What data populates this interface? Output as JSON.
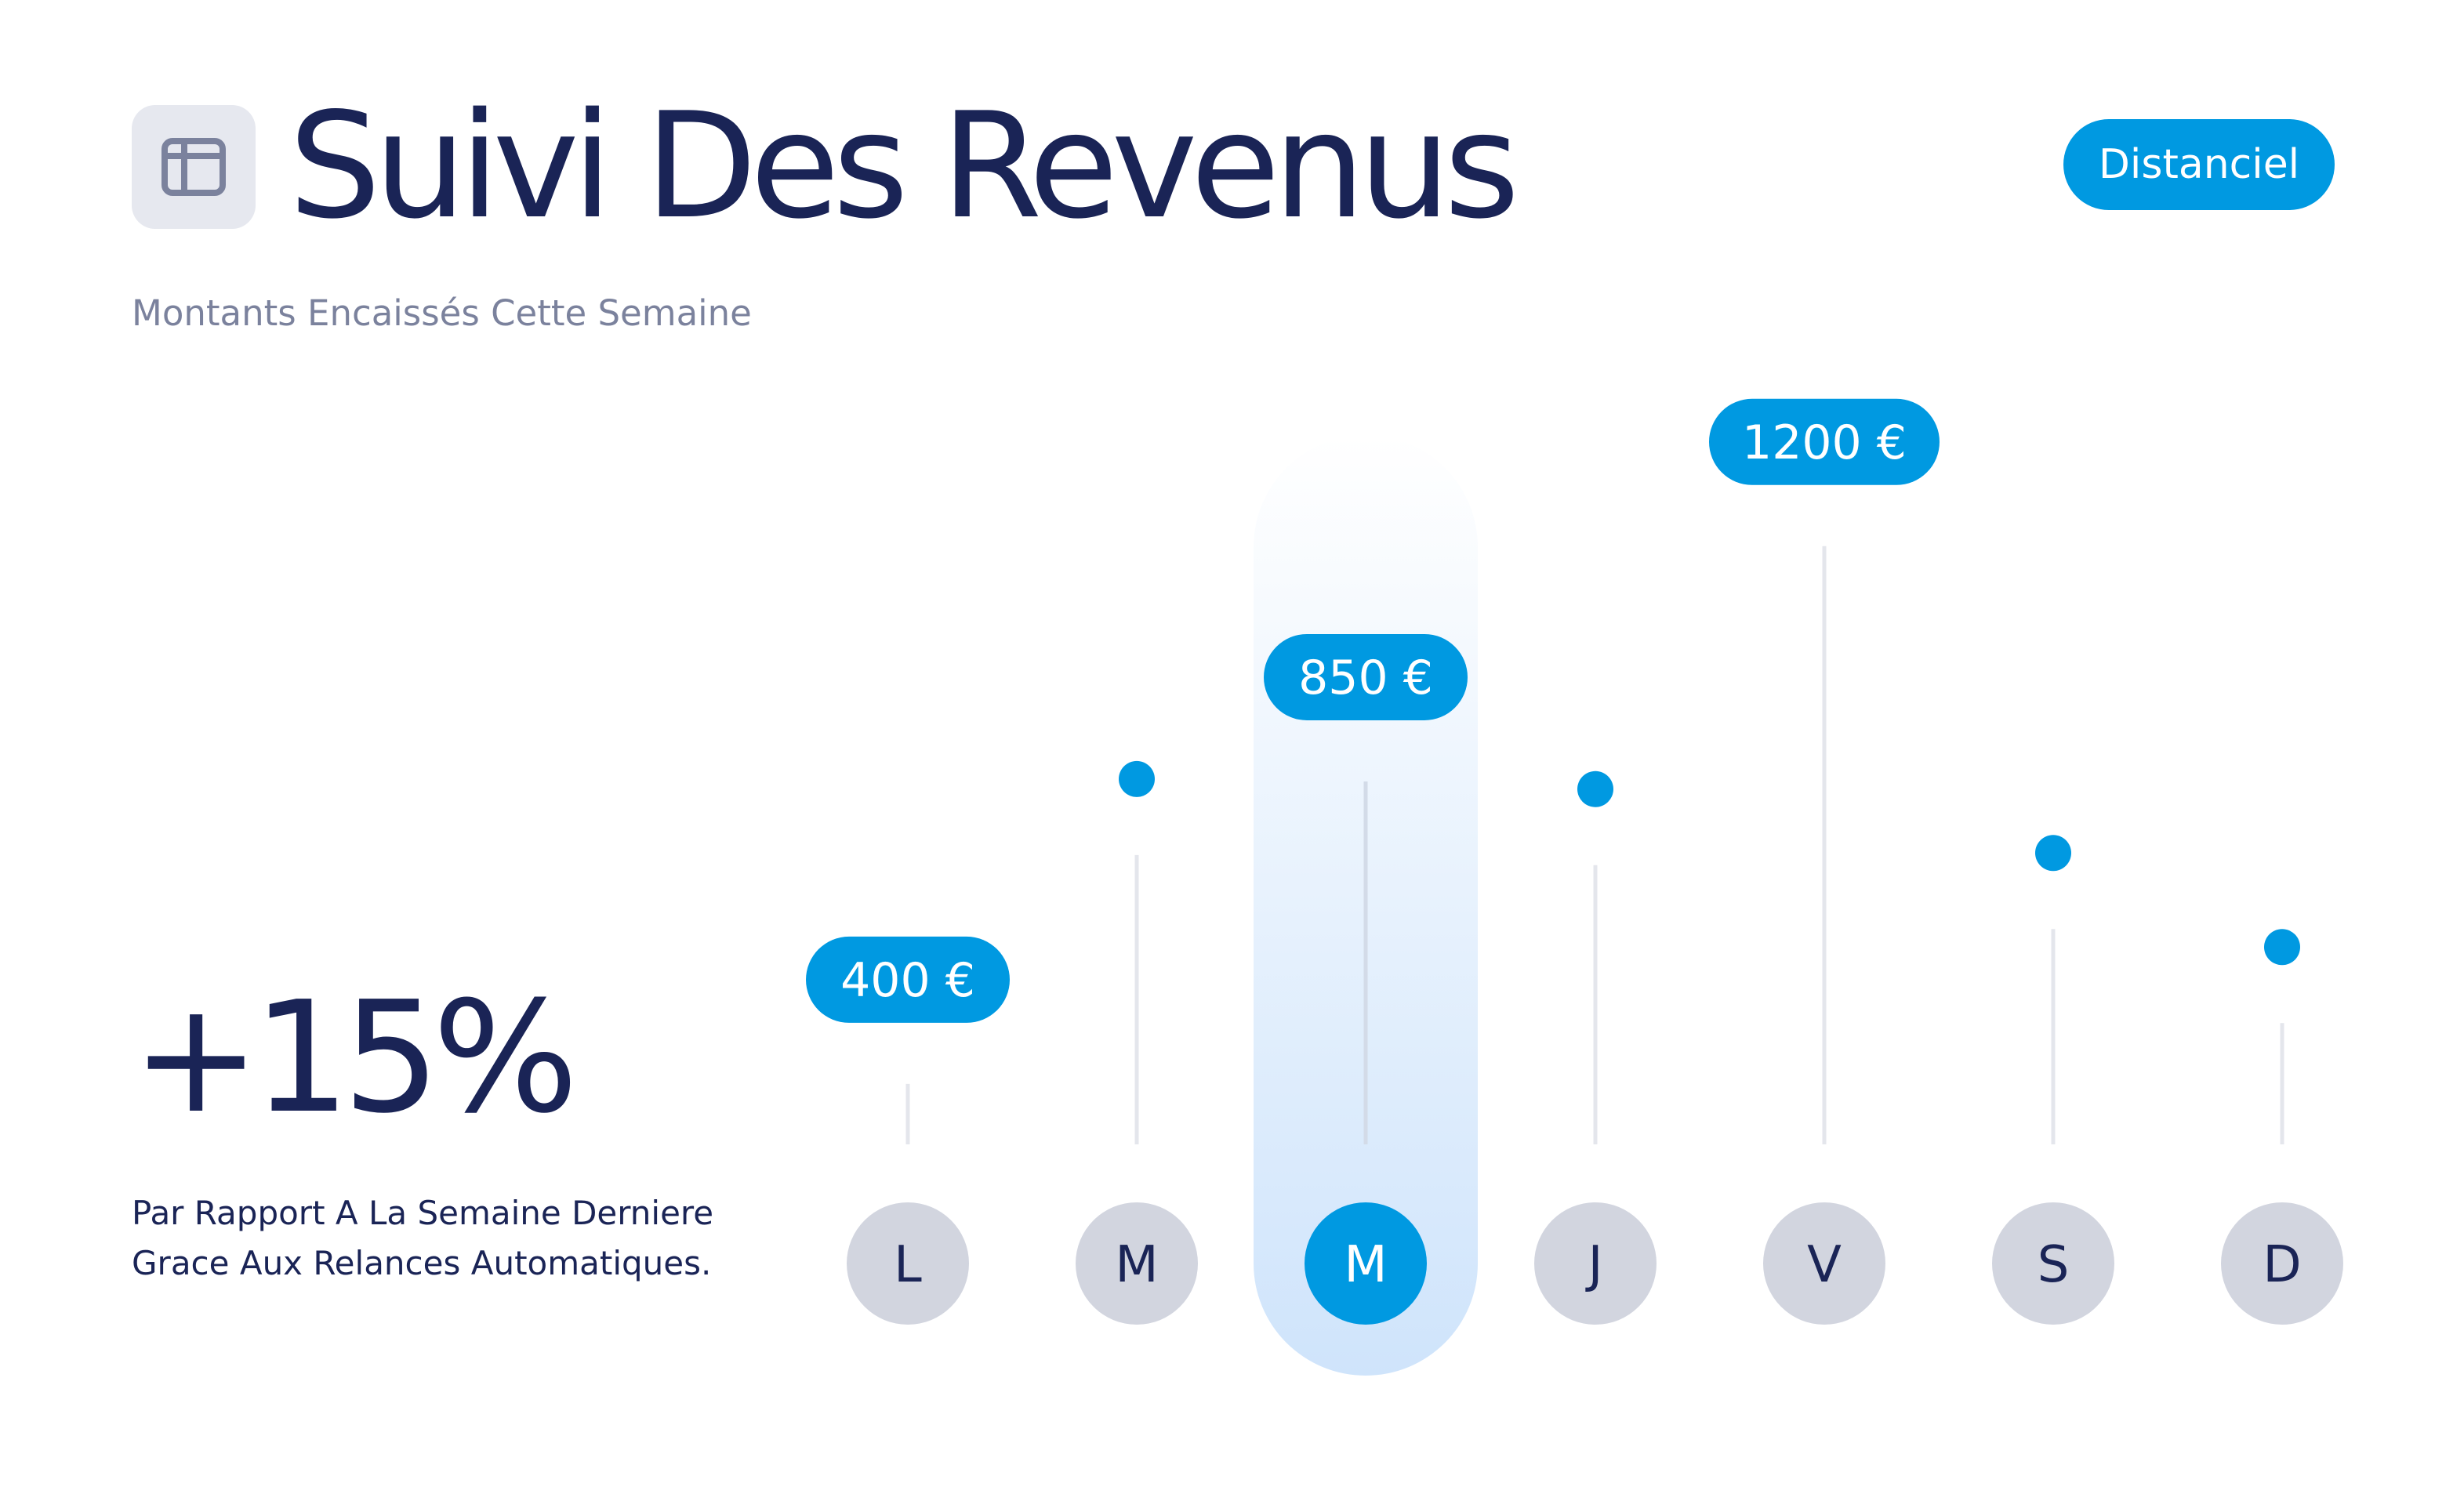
{
  "header": {
    "title": "Suivi Des Revenus",
    "subtitle": "Montants Encaissés Cette Semaine",
    "badge": "Distanciel",
    "icon": "sidebar-layout-icon"
  },
  "kpi": {
    "value": "+15%",
    "caption": "Par Rapport A La Semaine Derniere Grace Aux Relances Automatiques."
  },
  "colors": {
    "accent": "#0099e1",
    "text": "#1a2456",
    "muted": "#7b829d",
    "day_circle": "#d2d5df",
    "stem": "#e4e6ec",
    "highlight_top": "#ffffff",
    "highlight_bottom": "#cfe4fb"
  },
  "chart_data": {
    "type": "lollipop",
    "categories": [
      "L",
      "M",
      "M",
      "J",
      "V",
      "S",
      "D"
    ],
    "values": [
      400,
      730,
      850,
      715,
      1200,
      620,
      480
    ],
    "data_labels": [
      "400 €",
      "",
      "850 €",
      "",
      "1200 €",
      "",
      ""
    ],
    "highlight_index": 2,
    "unit": "€",
    "ylim": [
      0,
      1300
    ],
    "grid": false
  }
}
